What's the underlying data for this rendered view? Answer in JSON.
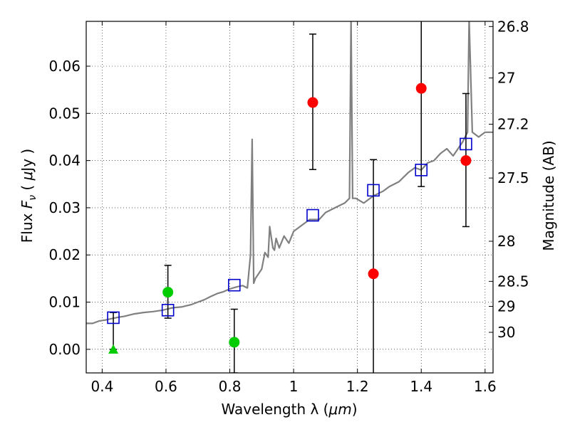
{
  "chart_data": {
    "type": "scatter",
    "xlabel_text": "Wavelength  λ (",
    "xlabel_unit": "μm",
    "xlabel_close": ")",
    "ylabel_text": "Flux ",
    "ylabel_symbol": "F",
    "ylabel_sub": "ν",
    "ylabel_units_prefix": " ( ",
    "ylabel_units_mu": "μ",
    "ylabel_units_rest": "Jy )",
    "ylabel_right": "Magnitude (AB)",
    "xlim": [
      0.35,
      1.625
    ],
    "ylim": [
      -0.005,
      0.0695
    ],
    "grid": true,
    "x_ticks": [
      {
        "value": 0.4,
        "label": "0.4"
      },
      {
        "value": 0.6,
        "label": "0.6"
      },
      {
        "value": 0.8,
        "label": "0.8"
      },
      {
        "value": 1.0,
        "label": "1"
      },
      {
        "value": 1.2,
        "label": "1.2"
      },
      {
        "value": 1.4,
        "label": "1.4"
      },
      {
        "value": 1.6,
        "label": "1.6"
      }
    ],
    "y_ticks": [
      {
        "value": 0.0,
        "label": "0.00"
      },
      {
        "value": 0.01,
        "label": "0.01"
      },
      {
        "value": 0.02,
        "label": "0.02"
      },
      {
        "value": 0.03,
        "label": "0.03"
      },
      {
        "value": 0.04,
        "label": "0.04"
      },
      {
        "value": 0.05,
        "label": "0.05"
      },
      {
        "value": 0.06,
        "label": "0.06"
      }
    ],
    "magnitude_ticks": [
      {
        "flux": 0.0684,
        "label": "26.8"
      },
      {
        "flux": 0.0575,
        "label": "27"
      },
      {
        "flux": 0.0477,
        "label": "27.2"
      },
      {
        "flux": 0.0363,
        "label": "27.5"
      },
      {
        "flux": 0.0229,
        "label": "28"
      },
      {
        "flux": 0.0144,
        "label": "28.5"
      },
      {
        "flux": 0.0091,
        "label": "29"
      },
      {
        "flux": 0.0036,
        "label": "30"
      }
    ],
    "colors": {
      "model": "#808080",
      "model_points": "#0000cc",
      "red_points": "#ff0000",
      "green_points": "#00cc00",
      "errorbar": "#000000"
    },
    "series": [
      {
        "kind": "model_spectrum",
        "points": [
          [
            0.35,
            0.0055
          ],
          [
            0.37,
            0.0055
          ],
          [
            0.39,
            0.006
          ],
          [
            0.41,
            0.0062
          ],
          [
            0.43,
            0.0065
          ],
          [
            0.45,
            0.0068
          ],
          [
            0.47,
            0.007
          ],
          [
            0.5,
            0.0075
          ],
          [
            0.53,
            0.0078
          ],
          [
            0.56,
            0.008
          ],
          [
            0.59,
            0.0083
          ],
          [
            0.62,
            0.0088
          ],
          [
            0.65,
            0.009
          ],
          [
            0.68,
            0.0095
          ],
          [
            0.7,
            0.01
          ],
          [
            0.72,
            0.0105
          ],
          [
            0.74,
            0.0112
          ],
          [
            0.76,
            0.0118
          ],
          [
            0.78,
            0.0122
          ],
          [
            0.8,
            0.0128
          ],
          [
            0.82,
            0.0132
          ],
          [
            0.84,
            0.0135
          ],
          [
            0.855,
            0.013
          ],
          [
            0.865,
            0.02
          ],
          [
            0.87,
            0.0445
          ],
          [
            0.875,
            0.014
          ],
          [
            0.88,
            0.015
          ],
          [
            0.9,
            0.017
          ],
          [
            0.91,
            0.0205
          ],
          [
            0.92,
            0.0195
          ],
          [
            0.925,
            0.026
          ],
          [
            0.935,
            0.0215
          ],
          [
            0.94,
            0.021
          ],
          [
            0.945,
            0.0235
          ],
          [
            0.955,
            0.0215
          ],
          [
            0.97,
            0.024
          ],
          [
            0.985,
            0.0225
          ],
          [
            1.0,
            0.025
          ],
          [
            1.02,
            0.026
          ],
          [
            1.05,
            0.0275
          ],
          [
            1.08,
            0.0275
          ],
          [
            1.1,
            0.029
          ],
          [
            1.13,
            0.03
          ],
          [
            1.16,
            0.031
          ],
          [
            1.175,
            0.032
          ],
          [
            1.18,
            0.07
          ],
          [
            1.185,
            0.032
          ],
          [
            1.195,
            0.032
          ],
          [
            1.22,
            0.031
          ],
          [
            1.25,
            0.0325
          ],
          [
            1.28,
            0.0335
          ],
          [
            1.3,
            0.0345
          ],
          [
            1.33,
            0.0355
          ],
          [
            1.36,
            0.0375
          ],
          [
            1.38,
            0.0385
          ],
          [
            1.4,
            0.038
          ],
          [
            1.42,
            0.0395
          ],
          [
            1.44,
            0.04
          ],
          [
            1.46,
            0.0415
          ],
          [
            1.48,
            0.0425
          ],
          [
            1.5,
            0.041
          ],
          [
            1.52,
            0.043
          ],
          [
            1.53,
            0.044
          ],
          [
            1.545,
            0.046
          ],
          [
            1.55,
            0.07
          ],
          [
            1.56,
            0.046
          ],
          [
            1.58,
            0.045
          ],
          [
            1.6,
            0.046
          ],
          [
            1.625,
            0.046
          ]
        ]
      },
      {
        "kind": "model_photometry",
        "marker": "open-square",
        "points": [
          [
            0.435,
            0.0067
          ],
          [
            0.606,
            0.0083
          ],
          [
            0.814,
            0.0136
          ],
          [
            1.06,
            0.0284
          ],
          [
            1.25,
            0.0337
          ],
          [
            1.4,
            0.038
          ],
          [
            1.54,
            0.0435
          ]
        ]
      },
      {
        "kind": "red_detections",
        "marker": "filled-circle",
        "points": [
          {
            "x": 1.06,
            "y": 0.0523,
            "err_low": 0.0142,
            "err_high": 0.0145
          },
          {
            "x": 1.25,
            "y": 0.016,
            "err_low": 0.0215,
            "err_high": 0.0242
          },
          {
            "x": 1.4,
            "y": 0.0553,
            "err_low": 0.0208,
            "err_high": 0.0147
          },
          {
            "x": 1.54,
            "y": 0.04,
            "err_low": 0.014,
            "err_high": 0.0142
          }
        ]
      },
      {
        "kind": "green_detections",
        "marker": "filled-circle",
        "points": [
          {
            "x": 0.606,
            "y": 0.0121,
            "err_low": 0.0055,
            "err_high": 0.0057
          },
          {
            "x": 0.814,
            "y": 0.0015,
            "err_low": 0.0065,
            "err_high": 0.007
          }
        ]
      },
      {
        "kind": "green_upper_limit",
        "marker": "triangle",
        "points": [
          {
            "x": 0.435,
            "y": 0.0,
            "err_low": 0.0,
            "err_high": 0.0078
          }
        ]
      }
    ]
  }
}
